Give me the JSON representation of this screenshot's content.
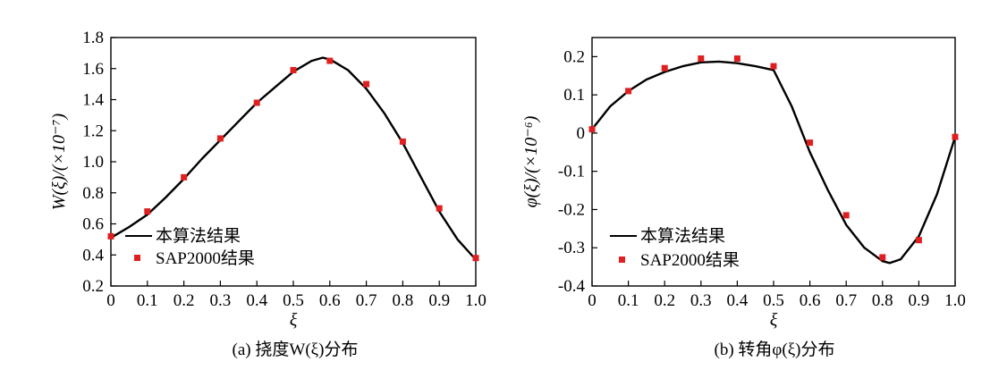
{
  "chart_data": [
    {
      "type": "line",
      "panel": "a",
      "caption": "(a) 挠度W(ξ)分布",
      "xlabel": "ξ",
      "ylabel": "W(ξ)/(×10⁻⁷)",
      "xlim": [
        0,
        1.0
      ],
      "ylim": [
        0.2,
        1.8
      ],
      "xticks": [
        "0",
        "0.1",
        "0.2",
        "0.3",
        "0.4",
        "0.5",
        "0.6",
        "0.7",
        "0.8",
        "0.9",
        "1.0"
      ],
      "yticks": [
        "0.2",
        "0.4",
        "0.6",
        "0.8",
        "1.0",
        "1.2",
        "1.4",
        "1.6",
        "1.8"
      ],
      "legend": {
        "position": "bottom-left",
        "entries": [
          "本算法结果",
          "SAP2000结果"
        ]
      },
      "series": [
        {
          "name": "本算法结果",
          "style": "line",
          "color": "#000000",
          "x": [
            0,
            0.05,
            0.1,
            0.15,
            0.2,
            0.25,
            0.3,
            0.35,
            0.4,
            0.45,
            0.5,
            0.55,
            0.58,
            0.6,
            0.65,
            0.7,
            0.75,
            0.8,
            0.85,
            0.9,
            0.95,
            1.0
          ],
          "y": [
            0.51,
            0.58,
            0.66,
            0.77,
            0.89,
            1.02,
            1.14,
            1.26,
            1.38,
            1.48,
            1.58,
            1.65,
            1.67,
            1.66,
            1.59,
            1.47,
            1.31,
            1.12,
            0.9,
            0.68,
            0.5,
            0.37
          ]
        },
        {
          "name": "SAP2000结果",
          "style": "marker",
          "color": "#e02020",
          "x": [
            0,
            0.1,
            0.2,
            0.3,
            0.4,
            0.5,
            0.6,
            0.7,
            0.8,
            0.9,
            1.0
          ],
          "y": [
            0.52,
            0.68,
            0.9,
            1.15,
            1.38,
            1.59,
            1.65,
            1.5,
            1.13,
            0.7,
            0.38
          ]
        }
      ]
    },
    {
      "type": "line",
      "panel": "b",
      "caption": "(b) 转角φ(ξ)分布",
      "xlabel": "ξ",
      "ylabel": "φ(ξ)/(×10⁻⁶)",
      "xlim": [
        0,
        1.0
      ],
      "ylim": [
        -0.4,
        0.25
      ],
      "xticks": [
        "0",
        "0.1",
        "0.2",
        "0.3",
        "0.4",
        "0.5",
        "0.6",
        "0.7",
        "0.8",
        "0.9",
        "1.0"
      ],
      "yticks": [
        "0.2",
        "0.1",
        "0",
        "-0.1",
        "-0.2",
        "-0.3",
        "-0.4"
      ],
      "legend": {
        "position": "bottom-left",
        "entries": [
          "本算法结果",
          "SAP2000结果"
        ]
      },
      "series": [
        {
          "name": "本算法结果",
          "style": "line",
          "color": "#000000",
          "x": [
            0,
            0.05,
            0.1,
            0.15,
            0.2,
            0.25,
            0.3,
            0.35,
            0.4,
            0.45,
            0.5,
            0.55,
            0.6,
            0.65,
            0.7,
            0.75,
            0.8,
            0.82,
            0.85,
            0.9,
            0.95,
            1.0
          ],
          "y": [
            0.01,
            0.07,
            0.11,
            0.14,
            0.16,
            0.175,
            0.185,
            0.187,
            0.183,
            0.175,
            0.165,
            0.07,
            -0.05,
            -0.15,
            -0.24,
            -0.3,
            -0.335,
            -0.34,
            -0.33,
            -0.27,
            -0.16,
            -0.01
          ]
        },
        {
          "name": "SAP2000结果",
          "style": "marker",
          "color": "#e02020",
          "x": [
            0,
            0.1,
            0.2,
            0.3,
            0.4,
            0.5,
            0.6,
            0.7,
            0.8,
            0.9,
            1.0
          ],
          "y": [
            0.01,
            0.11,
            0.17,
            0.195,
            0.195,
            0.175,
            -0.025,
            -0.215,
            -0.325,
            -0.28,
            -0.01
          ]
        }
      ]
    }
  ]
}
